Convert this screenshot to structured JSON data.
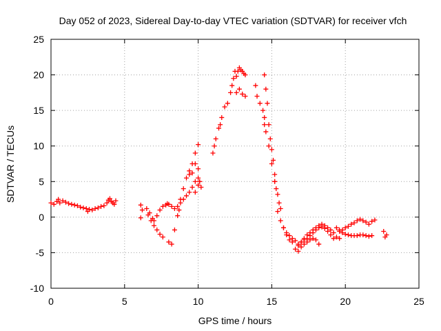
{
  "chart_data": {
    "type": "scatter",
    "title": "Day 052 of 2023, Sidereal Day-to-day VTEC variation (SDTVAR) for receiver vfch",
    "xlabel": "GPS time / hours",
    "ylabel": "SDTVAR / TECUs",
    "xlim": [
      0,
      25
    ],
    "ylim": [
      -10,
      25
    ],
    "grid": true,
    "marker": "plus",
    "color": "#ff0000",
    "x_ticks": [
      0,
      5,
      10,
      15,
      20,
      25
    ],
    "y_ticks": [
      -10,
      -5,
      0,
      5,
      10,
      15,
      20,
      25
    ],
    "x_tick_labels": [
      "0",
      "5",
      "10",
      "15",
      "20",
      "25"
    ],
    "y_tick_labels": [
      "-10",
      "-5",
      "0",
      "5",
      "10",
      "15",
      "20",
      "25"
    ],
    "series": [
      {
        "name": "SDTVAR",
        "x": [
          0.0,
          0.2,
          0.4,
          0.5,
          0.6,
          0.8,
          1.0,
          1.2,
          1.4,
          1.6,
          1.8,
          2.0,
          2.2,
          2.4,
          2.5,
          2.6,
          2.8,
          3.0,
          3.2,
          3.4,
          3.6,
          3.8,
          3.9,
          4.0,
          4.1,
          4.2,
          4.3,
          4.4,
          6.1,
          6.2,
          6.1,
          6.5,
          6.7,
          6.9,
          7.0,
          7.2,
          7.4,
          7.6,
          7.8,
          7.9,
          8.0,
          8.2,
          6.6,
          6.8,
          7.0,
          7.2,
          7.4,
          7.6,
          8.0,
          8.2,
          8.4,
          8.6,
          8.7,
          8.8,
          9.0,
          9.2,
          9.4,
          9.6,
          9.8,
          10.0,
          8.4,
          8.6,
          8.8,
          9.0,
          9.2,
          9.4,
          9.6,
          9.8,
          10.0,
          10.1,
          9.4,
          9.6,
          9.8,
          10.0,
          10.1,
          10.2,
          9.8,
          10.0,
          11.0,
          11.1,
          11.2,
          11.4,
          11.5,
          11.6,
          11.8,
          12.0,
          12.2,
          12.3,
          12.4,
          12.5,
          12.6,
          12.7,
          12.8,
          12.9,
          13.0,
          13.1,
          13.2,
          12.6,
          12.8,
          13.0,
          13.2,
          13.9,
          14.0,
          14.2,
          14.4,
          14.5,
          14.5,
          14.5,
          14.6,
          14.7,
          14.8,
          14.9,
          15.0,
          15.1,
          15.2,
          15.2,
          14.6,
          14.8,
          15.0,
          15.2,
          15.3,
          15.4,
          15.5,
          15.6,
          15.4,
          15.6,
          15.8,
          16.0,
          16.2,
          16.4,
          16.6,
          16.8,
          17.0,
          17.2,
          17.4,
          17.6,
          17.8,
          18.0,
          18.2,
          15.8,
          16.0,
          16.2,
          16.4,
          16.6,
          16.8,
          17.0,
          17.2,
          17.4,
          17.6,
          17.8,
          18.0,
          18.2,
          18.4,
          18.6,
          18.8,
          19.0,
          19.2,
          19.4,
          19.6,
          16.8,
          17.0,
          17.2,
          17.4,
          17.6,
          17.8,
          18.0,
          18.2,
          18.4,
          18.6,
          18.8,
          19.0,
          19.2,
          19.4,
          19.6,
          19.8,
          20.0,
          20.2,
          20.4,
          20.6,
          20.8,
          21.0,
          21.2,
          21.4,
          21.6,
          21.8,
          19.6,
          19.8,
          20.0,
          20.2,
          20.4,
          20.6,
          20.8,
          21.0,
          21.2,
          21.4,
          21.6,
          21.8,
          22.0,
          22.6,
          22.7,
          22.8
        ],
        "y": [
          2.0,
          1.8,
          2.2,
          2.5,
          2.0,
          2.3,
          2.1,
          1.9,
          1.8,
          1.7,
          1.6,
          1.4,
          1.3,
          1.2,
          0.8,
          1.1,
          1.0,
          1.2,
          1.3,
          1.5,
          1.6,
          2.0,
          2.4,
          2.6,
          2.2,
          2.0,
          1.8,
          2.3,
          1.7,
          1.0,
          -0.1,
          1.2,
          0.6,
          -0.2,
          -0.5,
          0.2,
          1.0,
          1.5,
          1.7,
          1.9,
          1.8,
          1.5,
          0.3,
          -0.5,
          -1.2,
          -1.8,
          -2.4,
          -2.8,
          -3.5,
          -3.8,
          -1.8,
          0.2,
          1.0,
          2.5,
          4.0,
          5.5,
          6.0,
          7.5,
          9.0,
          10.2,
          1.2,
          1.5,
          2.0,
          2.5,
          3.0,
          3.5,
          4.2,
          5.0,
          5.5,
          5.0,
          6.5,
          6.2,
          3.5,
          4.5,
          5.0,
          4.2,
          7.5,
          6.8,
          9.0,
          10.0,
          11.0,
          12.5,
          13.0,
          14.0,
          15.5,
          16.0,
          17.5,
          18.5,
          19.5,
          20.5,
          19.8,
          20.5,
          21.0,
          20.7,
          20.5,
          20.2,
          20.0,
          17.5,
          18.0,
          17.3,
          17.0,
          18.5,
          17.0,
          16.0,
          15.0,
          14.0,
          13.0,
          20.0,
          18.0,
          16.0,
          13.0,
          11.0,
          9.5,
          8.0,
          6.0,
          5.0,
          12.0,
          10.0,
          7.5,
          5.0,
          4.0,
          3.2,
          2.0,
          1.2,
          0.8,
          -0.5,
          -1.5,
          -2.5,
          -3.2,
          -3.5,
          -4.5,
          -4.8,
          -4.2,
          -3.8,
          -3.5,
          -3.2,
          -3.0,
          -3.2,
          -3.8,
          -1.5,
          -2.2,
          -2.6,
          -3.0,
          -3.3,
          -3.8,
          -3.5,
          -3.0,
          -2.5,
          -2.2,
          -1.8,
          -1.5,
          -1.2,
          -1.0,
          -1.2,
          -1.5,
          -1.8,
          -2.2,
          -2.8,
          -3.0,
          -4.0,
          -3.5,
          -3.2,
          -3.0,
          -2.6,
          -2.2,
          -1.8,
          -1.5,
          -1.4,
          -1.6,
          -2.0,
          -2.5,
          -3.0,
          -1.5,
          -1.8,
          -2.2,
          -2.4,
          -2.5,
          -2.6,
          -2.6,
          -2.6,
          -2.5,
          -2.5,
          -2.6,
          -2.7,
          -2.6,
          -2.0,
          -1.8,
          -1.5,
          -1.3,
          -1.0,
          -0.8,
          -0.5,
          -0.3,
          -0.5,
          -0.7,
          -1.0,
          -0.6,
          -0.4,
          -2.0,
          -2.8,
          -2.5
        ]
      }
    ]
  }
}
